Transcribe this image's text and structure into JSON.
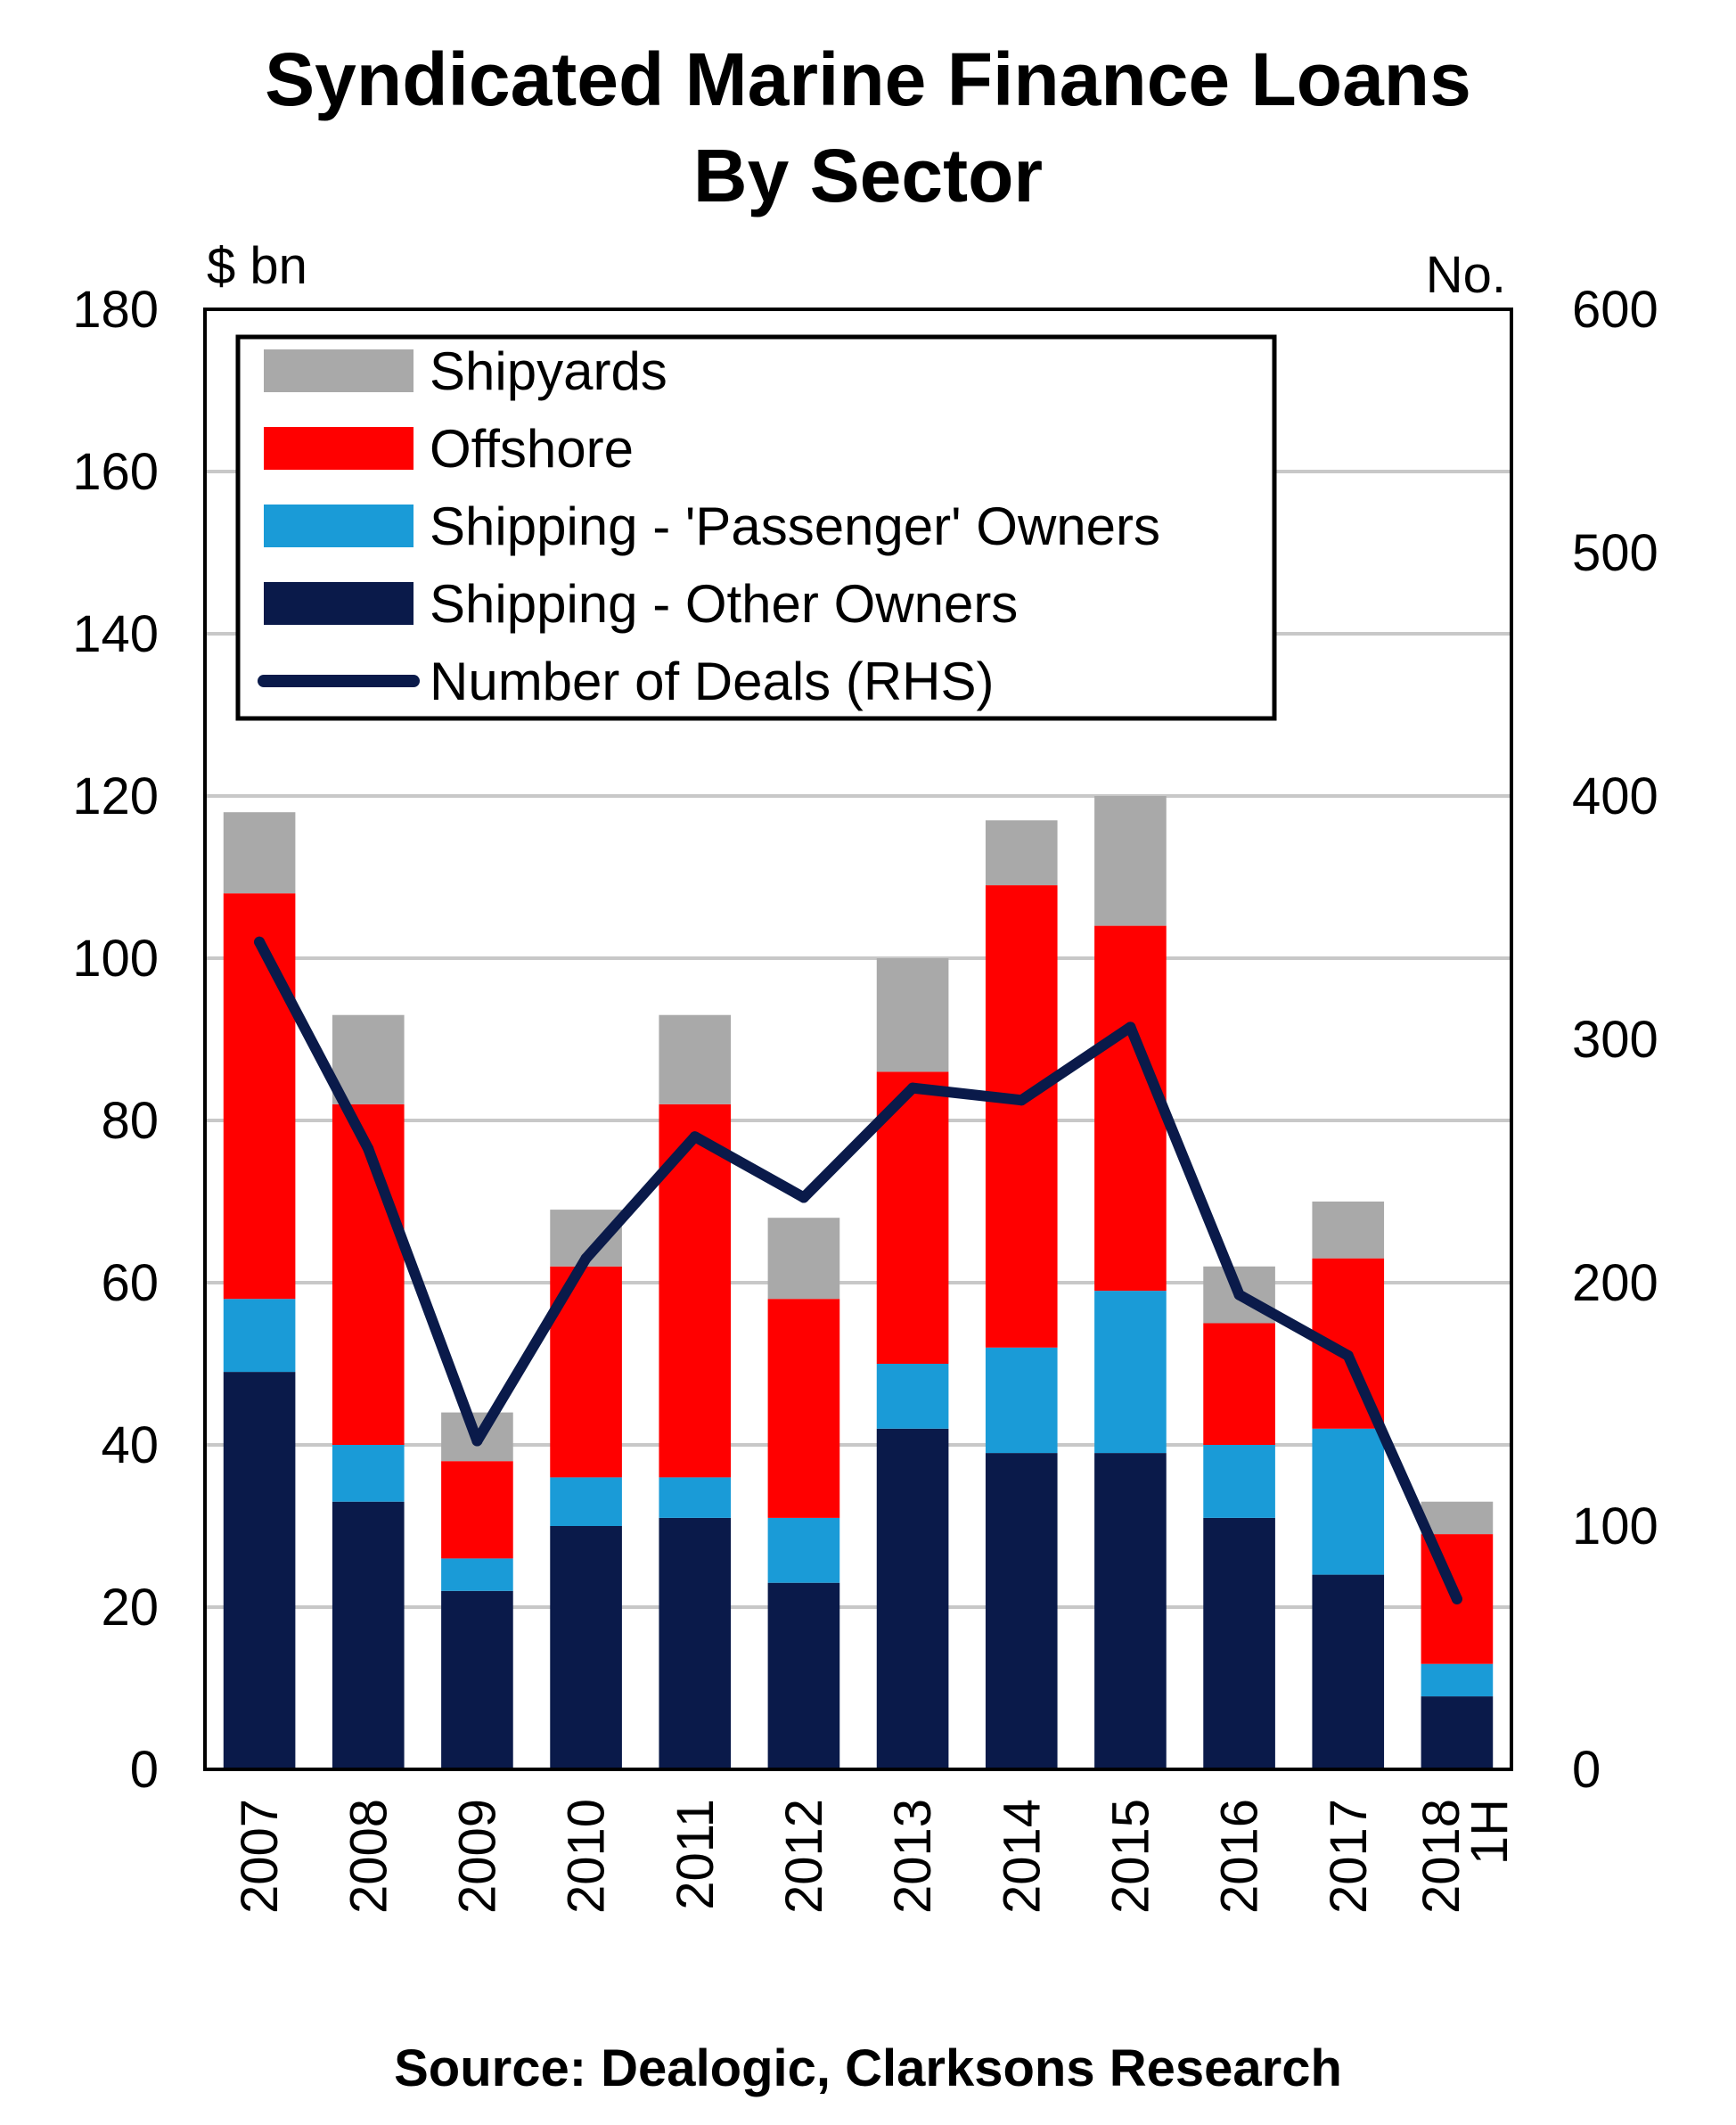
{
  "chart_data": {
    "type": "bar",
    "stacked": true,
    "title_lines": [
      "Syndicated Marine Finance Loans",
      "By Sector"
    ],
    "ylabel_left": "$ bn",
    "ylabel_right": "No.",
    "ylim_left": [
      0,
      180
    ],
    "ylim_right": [
      0,
      600
    ],
    "yticks_left": [
      0,
      20,
      40,
      60,
      80,
      100,
      120,
      140,
      160,
      180
    ],
    "yticks_right": [
      0,
      100,
      200,
      300,
      400,
      500,
      600
    ],
    "grid": true,
    "legend_position": "top-left",
    "categories": [
      "2007",
      "2008",
      "2009",
      "2010",
      "2011",
      "2012",
      "2013",
      "2014",
      "2015",
      "2016",
      "2017",
      "1H 2018"
    ],
    "series": [
      {
        "name": "Shipping - Other Owners",
        "color": "#0a1a4a",
        "values": [
          49,
          33,
          22,
          30,
          31,
          23,
          42,
          39,
          39,
          31,
          24,
          9
        ]
      },
      {
        "name": "Shipping - 'Passenger' Owners",
        "color": "#1a9bd7",
        "values": [
          9,
          7,
          4,
          6,
          5,
          8,
          8,
          13,
          20,
          9,
          18,
          4
        ]
      },
      {
        "name": "Offshore",
        "color": "#ff0000",
        "values": [
          50,
          42,
          12,
          26,
          46,
          27,
          36,
          57,
          45,
          15,
          21,
          16
        ]
      },
      {
        "name": "Shipyards",
        "color": "#a9a9a9",
        "values": [
          10,
          11,
          6,
          7,
          11,
          10,
          14,
          8,
          16,
          7,
          7,
          4
        ]
      }
    ],
    "line_series": {
      "name": "Number of Deals (RHS)",
      "color": "#0a1a4a",
      "axis": "right",
      "values": [
        340,
        255,
        135,
        210,
        260,
        235,
        280,
        275,
        305,
        195,
        170,
        70
      ]
    },
    "legend_order": [
      "Shipyards",
      "Offshore",
      "Shipping - 'Passenger' Owners",
      "Shipping - Other Owners",
      "Number of Deals (RHS)"
    ],
    "source": "Source: Dealogic, Clarksons Research"
  }
}
